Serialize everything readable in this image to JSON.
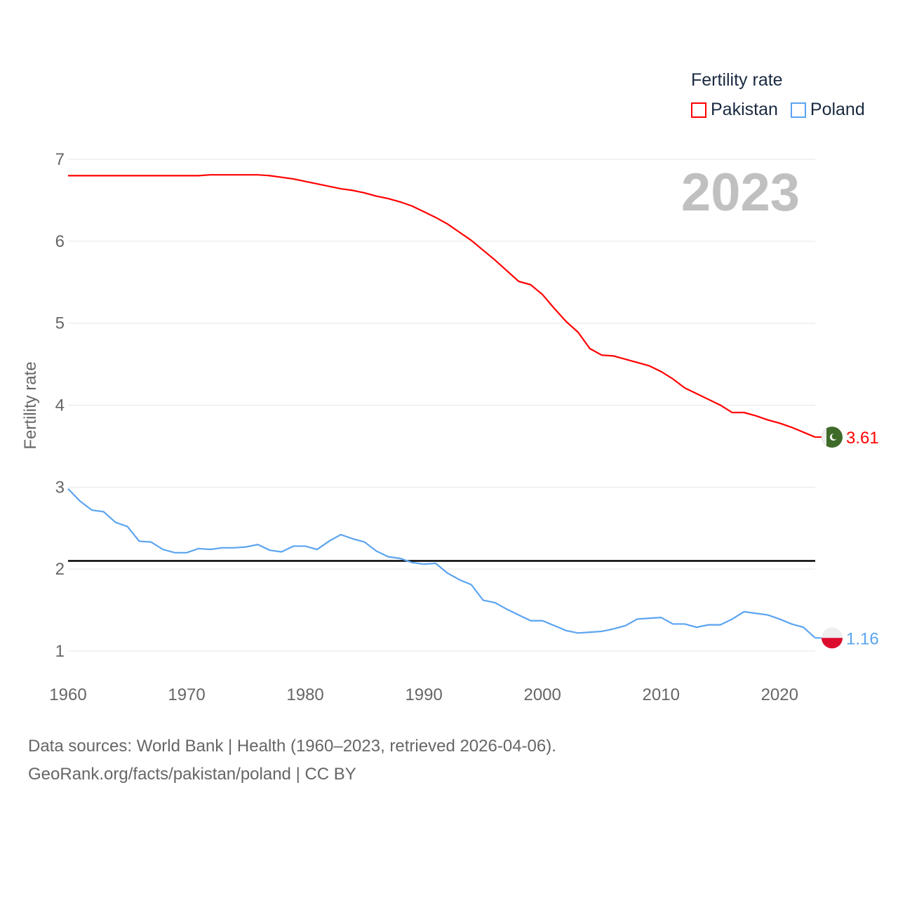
{
  "chart_data": {
    "type": "line",
    "title": "Fertility rate",
    "xlabel": "",
    "ylabel": "Fertility rate",
    "xlim": [
      1960,
      2023
    ],
    "ylim": [
      1,
      7
    ],
    "yticks": [
      1,
      2,
      3,
      4,
      5,
      6,
      7
    ],
    "xticks": [
      1960,
      1970,
      1980,
      1990,
      2000,
      2010,
      2020
    ],
    "grid": true,
    "legend_placement": "top-right",
    "year_label": "2023",
    "reference_line": 2.1,
    "x_start": 1960,
    "series": [
      {
        "name": "Pakistan",
        "color": "#ff0000",
        "end_label": "3.61",
        "values": [
          6.8,
          6.8,
          6.8,
          6.8,
          6.8,
          6.8,
          6.8,
          6.8,
          6.8,
          6.8,
          6.8,
          6.8,
          6.81,
          6.81,
          6.81,
          6.81,
          6.81,
          6.8,
          6.78,
          6.76,
          6.73,
          6.7,
          6.67,
          6.64,
          6.62,
          6.59,
          6.55,
          6.52,
          6.48,
          6.43,
          6.36,
          6.29,
          6.21,
          6.11,
          6.01,
          5.89,
          5.77,
          5.64,
          5.51,
          5.47,
          5.35,
          5.18,
          5.02,
          4.89,
          4.69,
          4.61,
          4.6,
          4.56,
          4.52,
          4.48,
          4.41,
          4.32,
          4.21,
          4.14,
          4.07,
          4.0,
          3.91,
          3.91,
          3.87,
          3.82,
          3.78,
          3.73,
          3.67,
          3.61
        ]
      },
      {
        "name": "Poland",
        "color": "#5ba4f0",
        "end_label": "1.16",
        "values": [
          2.98,
          2.83,
          2.72,
          2.7,
          2.57,
          2.52,
          2.34,
          2.33,
          2.24,
          2.2,
          2.2,
          2.25,
          2.24,
          2.26,
          2.26,
          2.27,
          2.3,
          2.23,
          2.21,
          2.28,
          2.28,
          2.24,
          2.34,
          2.42,
          2.37,
          2.33,
          2.22,
          2.15,
          2.13,
          2.08,
          2.06,
          2.07,
          1.95,
          1.87,
          1.81,
          1.62,
          1.59,
          1.51,
          1.44,
          1.37,
          1.37,
          1.31,
          1.25,
          1.22,
          1.23,
          1.24,
          1.27,
          1.31,
          1.39,
          1.4,
          1.41,
          1.33,
          1.33,
          1.29,
          1.32,
          1.32,
          1.39,
          1.48,
          1.46,
          1.44,
          1.39,
          1.33,
          1.29,
          1.16
        ]
      }
    ]
  },
  "footer": {
    "line1": "Data sources: World Bank | Health (1960–2023, retrieved 2026-04-06).",
    "line2": "GeoRank.org/facts/pakistan/poland | CC BY"
  }
}
